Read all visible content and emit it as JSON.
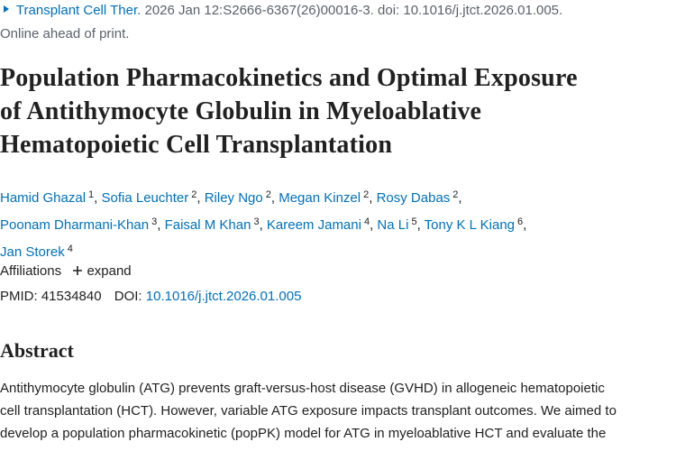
{
  "citation": {
    "journal": "Transplant Cell Ther.",
    "details": "2026 Jan 12:S2666-6367(26)00016-3. doi: 10.1016/j.jtct.2026.01.005.",
    "status": "Online ahead of print."
  },
  "title_lines": [
    "Population Pharmacokinetics and Optimal Exposure",
    "of Antithymocyte Globulin in Myeloablative",
    "Hematopoietic Cell Transplantation"
  ],
  "authors": [
    {
      "name": "Hamid Ghazal",
      "aff": "1"
    },
    {
      "name": "Sofia Leuchter",
      "aff": "2"
    },
    {
      "name": "Riley Ngo",
      "aff": "2"
    },
    {
      "name": "Megan Kinzel",
      "aff": "2"
    },
    {
      "name": "Rosy Dabas",
      "aff": "2"
    },
    {
      "name": "Poonam Dharmani-Khan",
      "aff": "3"
    },
    {
      "name": "Faisal M Khan",
      "aff": "3"
    },
    {
      "name": "Kareem Jamani",
      "aff": "4"
    },
    {
      "name": "Na Li",
      "aff": "5"
    },
    {
      "name": "Tony K L Kiang",
      "aff": "6"
    },
    {
      "name": "Jan Storek",
      "aff": "4"
    }
  ],
  "affiliations": {
    "label": "Affiliations",
    "toggle": "expand"
  },
  "identifiers": {
    "pmid_label": "PMID:",
    "pmid": "41534840",
    "doi_label": "DOI:",
    "doi": "10.1016/j.jtct.2026.01.005"
  },
  "abstract": {
    "heading": "Abstract",
    "lines": [
      "Antithymocyte globulin (ATG) prevents graft-versus-host disease (GVHD) in allogeneic hematopoietic",
      "cell transplantation (HCT). However, variable ATG exposure impacts transplant outcomes. We aimed to",
      "develop a population pharmacokinetic (popPK) model for ATG in myeloablative HCT and evaluate the"
    ]
  }
}
